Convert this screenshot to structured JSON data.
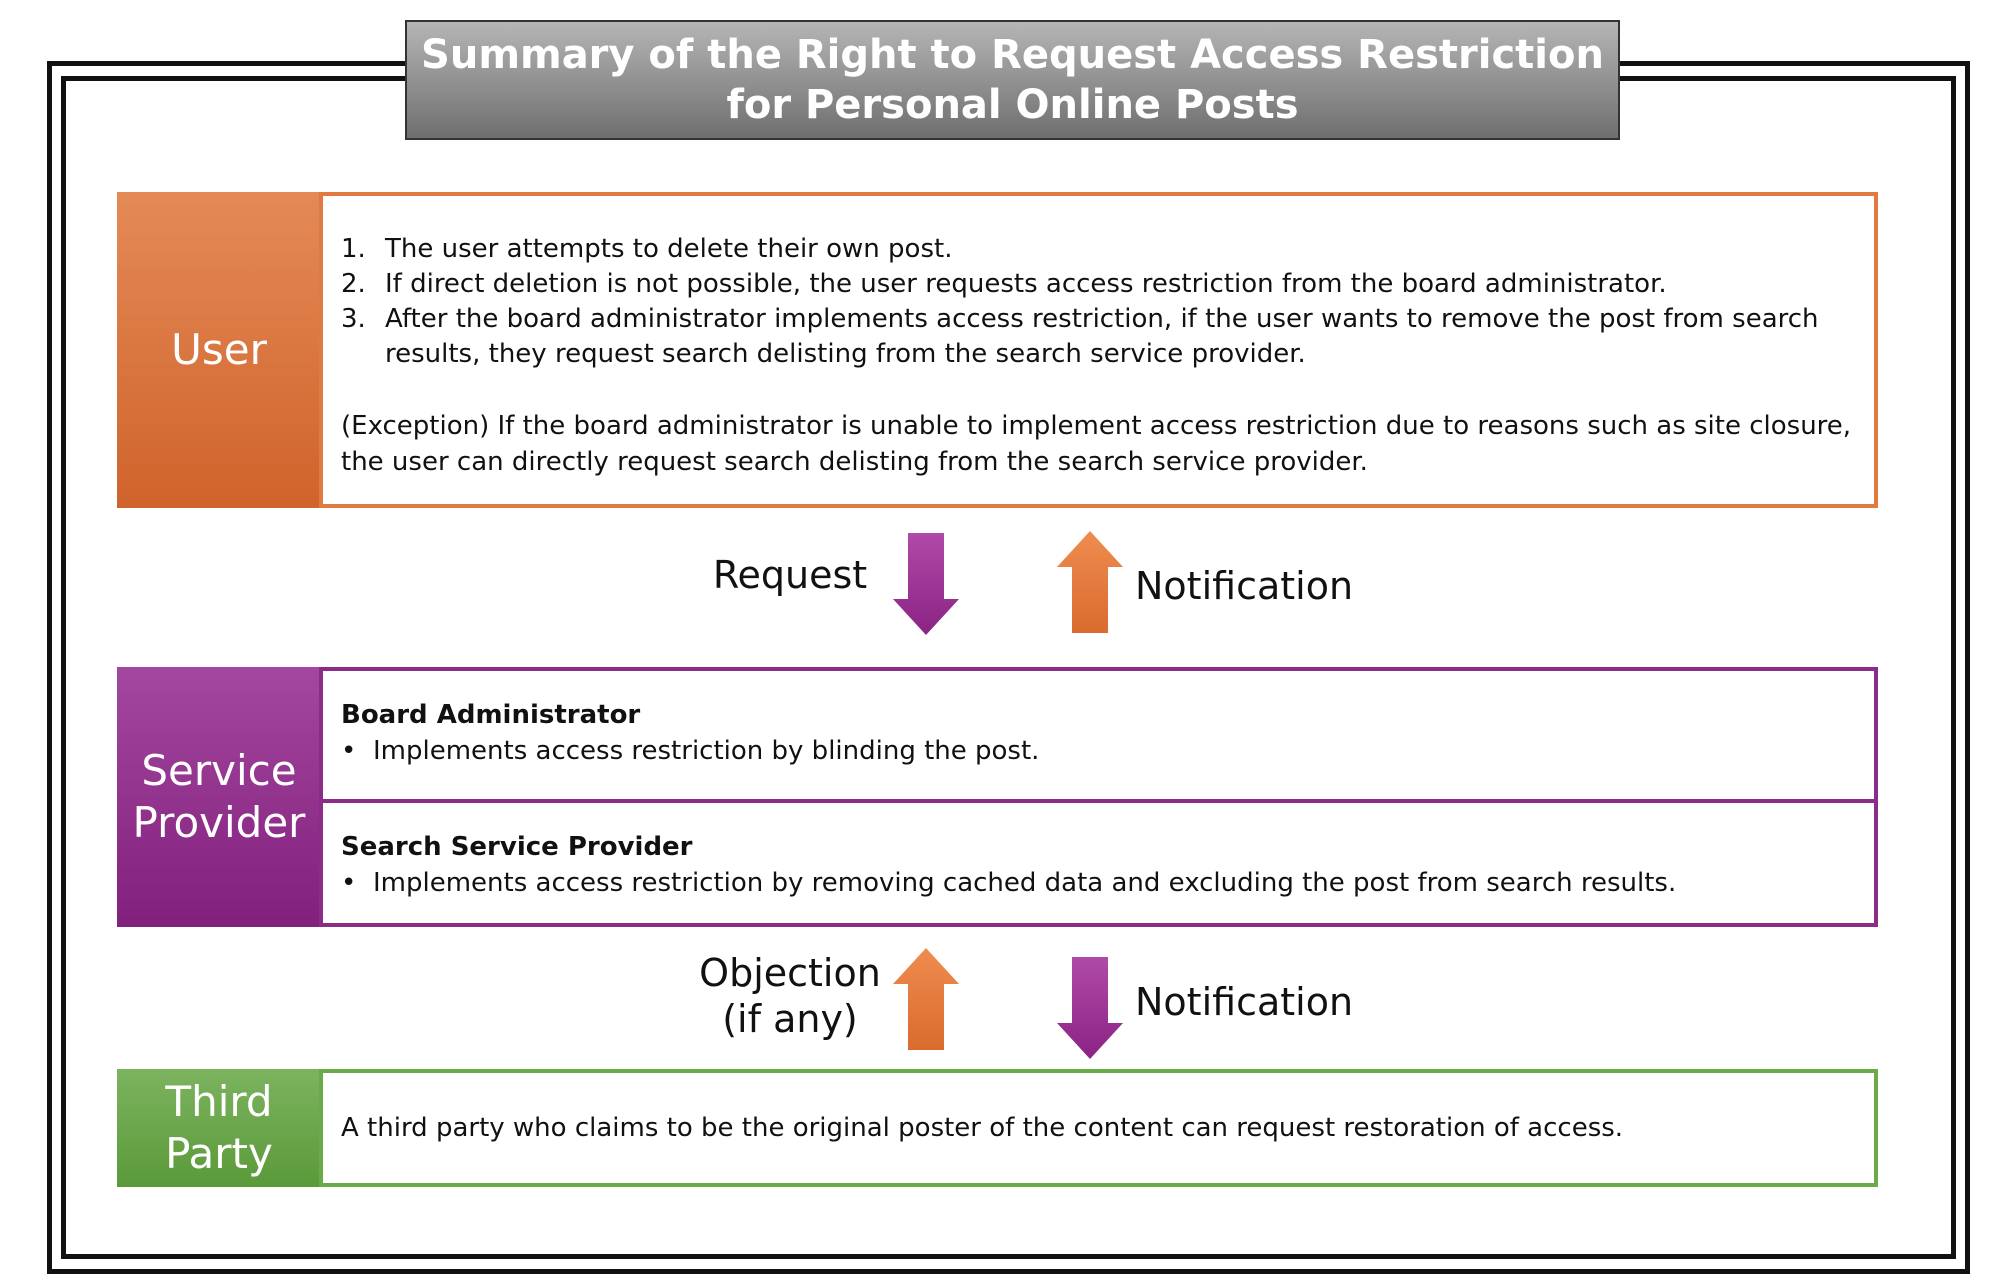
{
  "title": {
    "line1": "Summary of the Right to Request Access Restriction",
    "line2": "for Personal Online Posts"
  },
  "user": {
    "label": "User",
    "steps": [
      {
        "num": "1.",
        "text": "The user attempts to delete their own post."
      },
      {
        "num": "2.",
        "text": "If direct deletion is not possible, the user requests access restriction from the board administrator."
      },
      {
        "num": "3.",
        "text": "After the board administrator implements access restriction, if the user wants to remove the post from search results, they request search delisting from the search service provider."
      }
    ],
    "exception": "(Exception) If the board administrator is unable to implement access restriction due to reasons such as site closure, the user can directly request search delisting from the search service provider."
  },
  "flow_upper": {
    "left_label": "Request",
    "right_label": "Notification"
  },
  "service_provider": {
    "label_line1": "Service",
    "label_line2": "Provider",
    "sections": [
      {
        "heading": "Board Administrator",
        "bullet": "•",
        "text": "Implements access restriction by blinding the post."
      },
      {
        "heading": "Search Service Provider",
        "bullet": "•",
        "text": "Implements access restriction by removing cached data and excluding the post from search results."
      }
    ]
  },
  "flow_lower": {
    "left_label_line1": "Objection",
    "left_label_line2": "(if any)",
    "right_label": "Notification"
  },
  "third_party": {
    "label_line1": "Third",
    "label_line2": "Party",
    "text": "A third party who claims to be the original poster of the content can request restoration of access."
  },
  "colors": {
    "user": "#e07a3e",
    "service_provider": "#8b2c89",
    "third_party": "#6aab48",
    "arrow_purple": "#9b2d92",
    "arrow_orange": "#e8783a"
  }
}
